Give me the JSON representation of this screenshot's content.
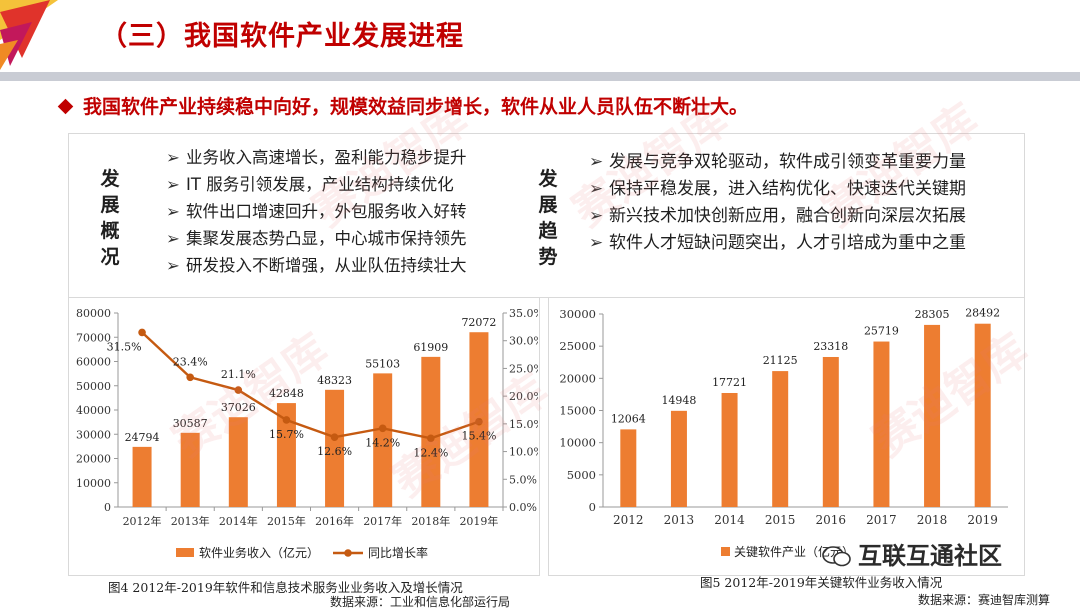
{
  "slide": {
    "title": "（三）我国软件产业发展进程",
    "headline": "我国软件产业持续稳中向好，规模效益同步增长，软件从业人员队伍不断壮大。",
    "overview_label": "发展概况",
    "overview_items": [
      "业务收入高速增长，盈利能力稳步提升",
      "IT 服务引领发展，产业结构持续优化",
      "软件出口增速回升，外包服务收入好转",
      "集聚发展态势凸显，中心城市保持领先",
      "研发投入不断增强，从业队伍持续壮大"
    ],
    "trend_label": "发展趋势",
    "trend_items": [
      "发展与竞争双轮驱动，软件成引领变革重要力量",
      "保持平稳发展，进入结构优化、快速迭代关键期",
      "新兴技术加快创新应用，融合创新向深层次拓展",
      "软件人才短缺问题突出，人才引培成为重中之重"
    ],
    "arrow_glyph": "➢",
    "watermark": "赛迪智库",
    "wechat_label": "互联互通社区",
    "colors": {
      "accent": "#c00000",
      "bar": "#ed7d31",
      "line": "#c55a11"
    }
  },
  "chart_data": [
    {
      "type": "bar",
      "categories": [
        "2012年",
        "2013年",
        "2014年",
        "2015年",
        "2016年",
        "2017年",
        "2018年",
        "2019年"
      ],
      "series": [
        {
          "name": "软件业务收入（亿元）",
          "type": "bar",
          "axis": "left",
          "values": [
            24794,
            30587,
            37026,
            42848,
            48323,
            55103,
            61909,
            72072
          ],
          "labels": [
            "24794",
            "30587",
            "37026",
            "42848",
            "48323",
            "55103",
            "61909",
            "72072"
          ]
        },
        {
          "name": "同比增长率",
          "type": "line",
          "axis": "right",
          "values": [
            31.5,
            23.4,
            21.1,
            15.7,
            12.6,
            14.2,
            12.4,
            15.4
          ],
          "labels": [
            "31.5%",
            "23.4%",
            "21.1%",
            "15.7%",
            "12.6%",
            "14.2%",
            "12.4%",
            "15.4%"
          ]
        }
      ],
      "ylim": [
        0,
        80000
      ],
      "yticks": [
        "0",
        "10000",
        "20000",
        "30000",
        "40000",
        "50000",
        "60000",
        "70000",
        "80000"
      ],
      "y2lim": [
        0,
        35
      ],
      "y2ticks": [
        "0.0%",
        "5.0%",
        "10.0%",
        "15.0%",
        "20.0%",
        "25.0%",
        "30.0%",
        "35.0%"
      ],
      "legend": "bottom",
      "grid": false,
      "caption": "图4 2012年-2019年软件和信息技术服务业业务收入及增长情况",
      "source": "数据来源：工业和信息化部运行局"
    },
    {
      "type": "bar",
      "categories": [
        "2012",
        "2013",
        "2014",
        "2015",
        "2016",
        "2017",
        "2018",
        "2019"
      ],
      "series": [
        {
          "name": "关键软件产业",
          "legend_text": "关键软件产业（亿元）",
          "values": [
            12064,
            14948,
            17721,
            21125,
            23318,
            25719,
            28305,
            28492
          ],
          "labels": [
            "12064",
            "14948",
            "17721",
            "21125",
            "23318",
            "25719",
            "28305",
            "28492"
          ]
        }
      ],
      "ylim": [
        0,
        30000
      ],
      "yticks": [
        "0",
        "5000",
        "10000",
        "15000",
        "20000",
        "25000",
        "30000"
      ],
      "legend": "bottom",
      "grid": false,
      "caption": "图5 2012年-2019年关键软件业务收入情况",
      "source": "数据来源：赛迪智库测算"
    }
  ]
}
